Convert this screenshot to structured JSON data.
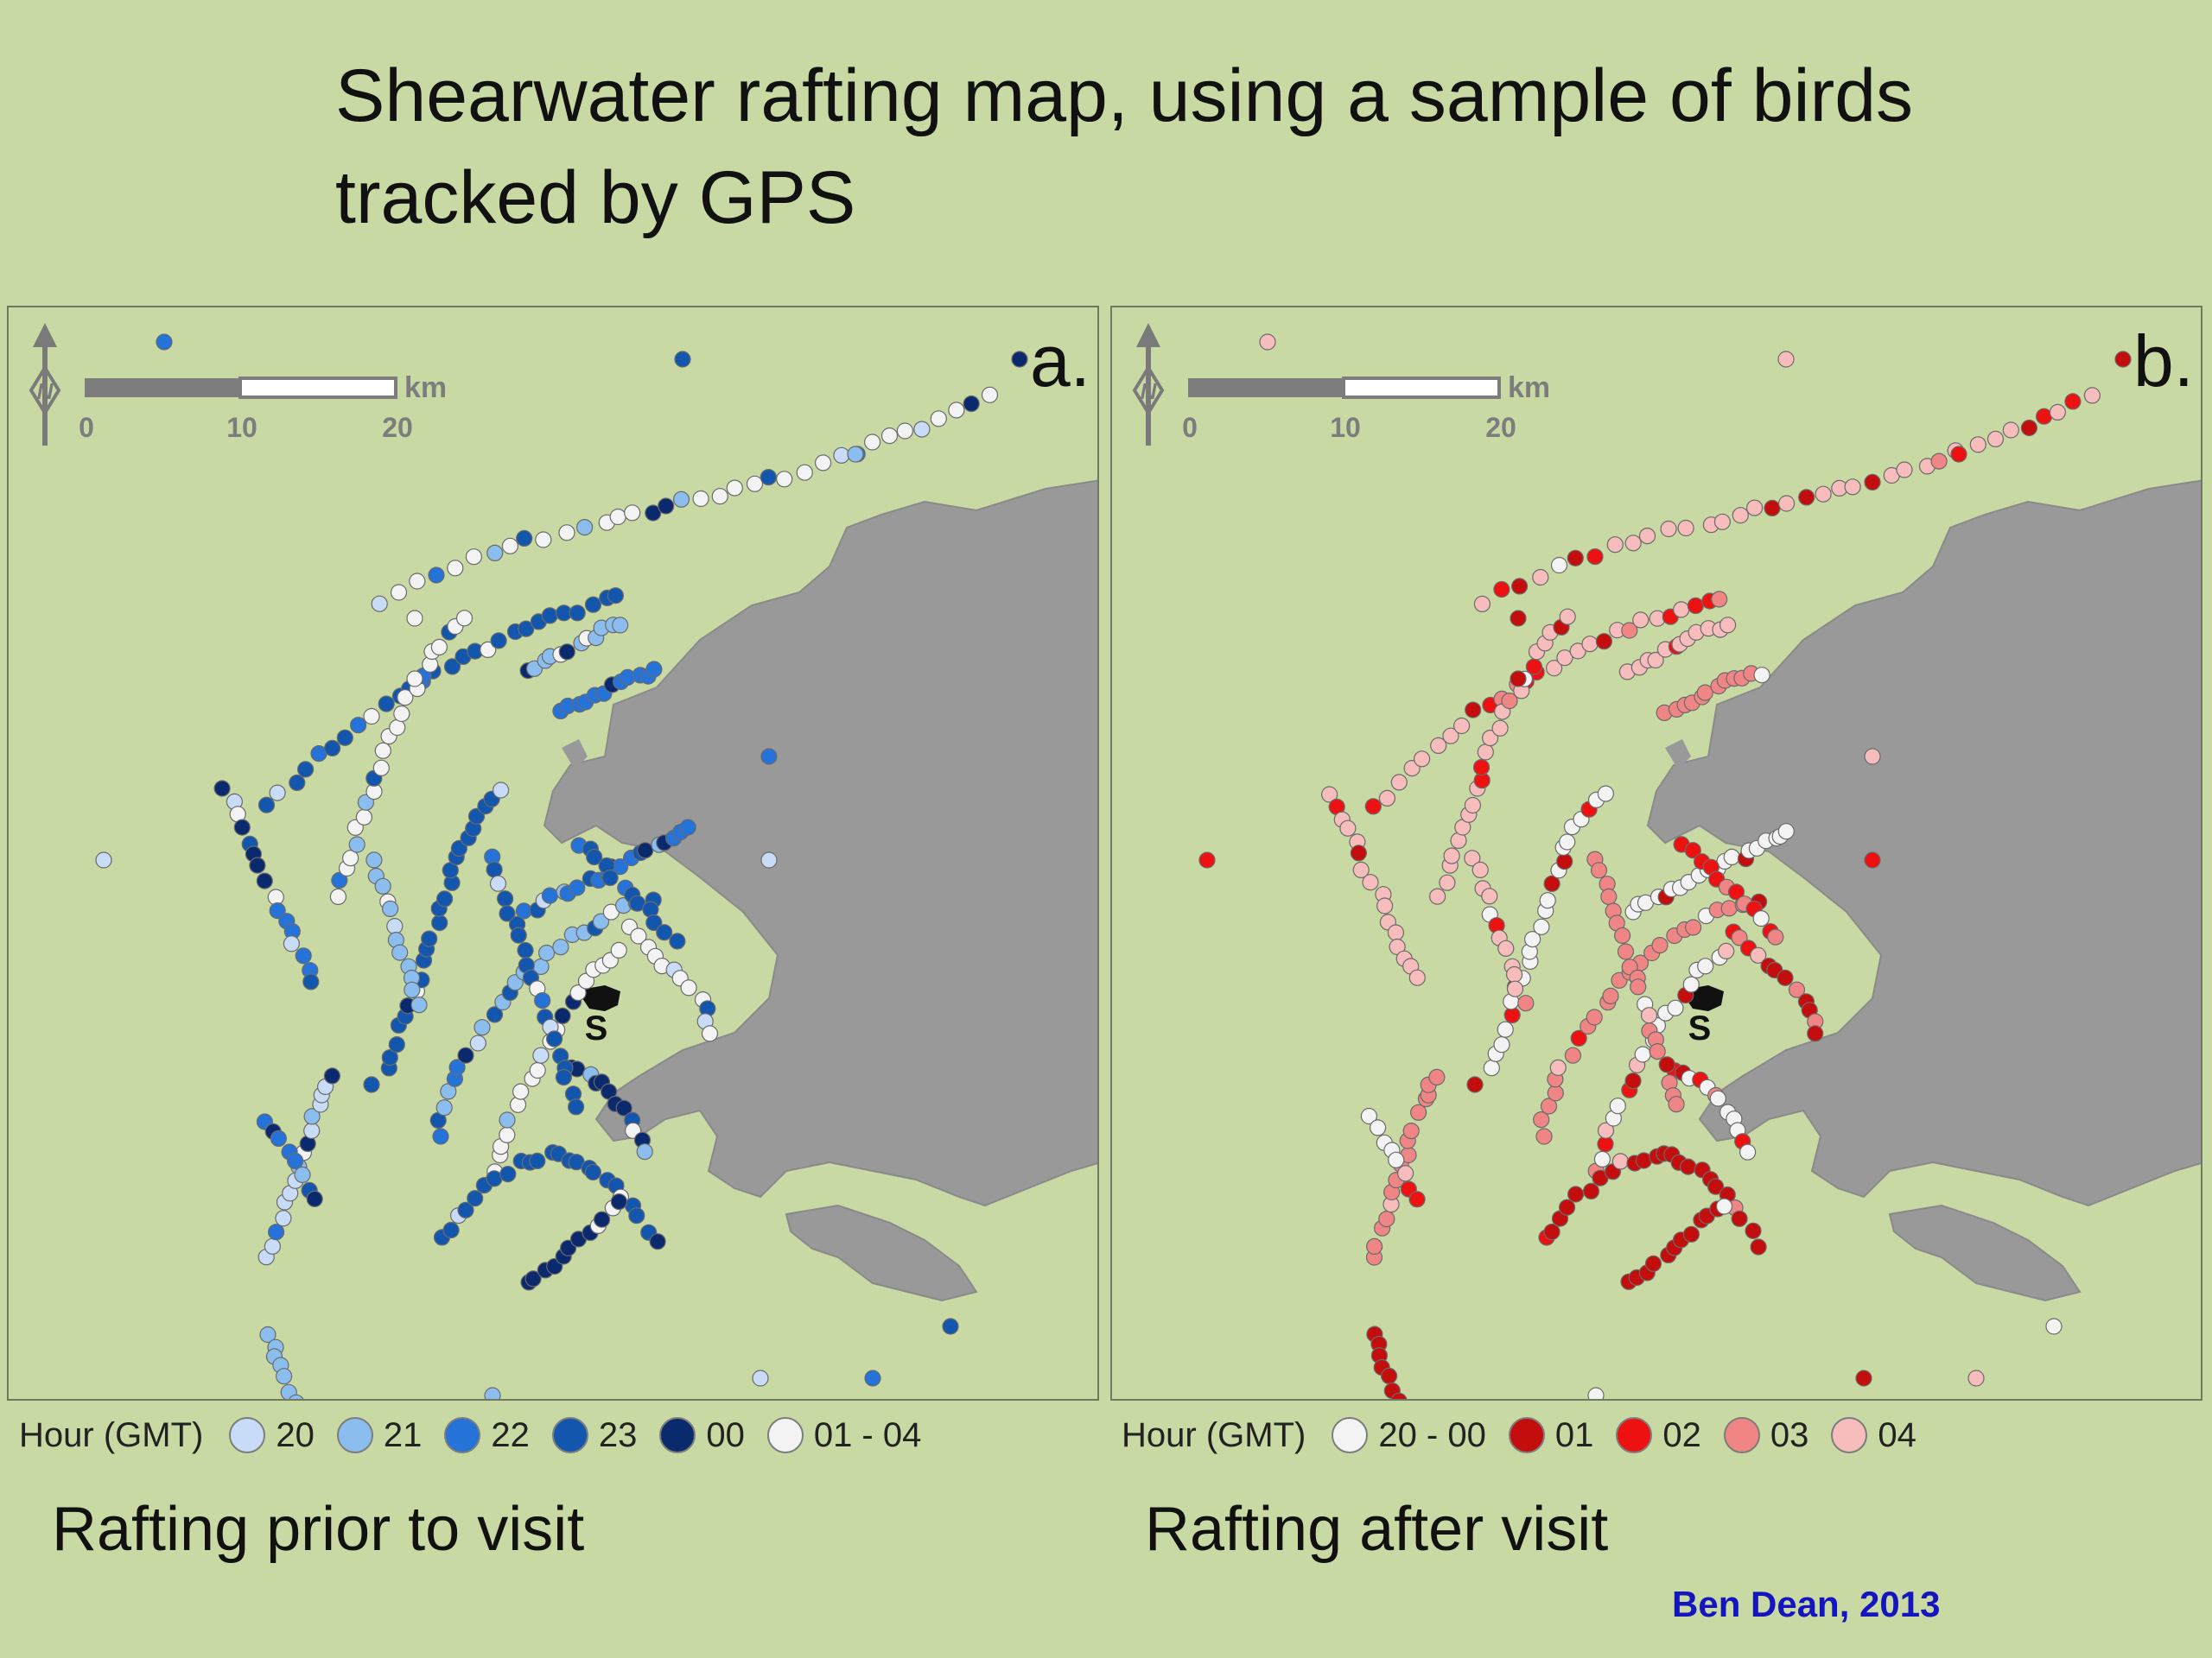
{
  "title": "Shearwater rafting map, using a sample of birds tracked by GPS",
  "scale_bar": {
    "unit": "km",
    "ticks": [
      "0",
      "10",
      "20"
    ]
  },
  "colony_label": "S",
  "land_color": "#999999",
  "sea_color": "#c8d9a3",
  "north_arrow_icon": "north-arrow-icon",
  "panels": [
    {
      "letter": "a.",
      "caption": "Rafting prior to visit",
      "legend_title": "Hour (GMT)",
      "legend": [
        {
          "label": "20",
          "color": "#c9dcf7"
        },
        {
          "label": "21",
          "color": "#8bbdee"
        },
        {
          "label": "22",
          "color": "#2573d9"
        },
        {
          "label": "23",
          "color": "#1257ad"
        },
        {
          "label": "00",
          "color": "#0b2a6e"
        },
        {
          "label": "01 - 04",
          "color": "#f3f3f3"
        }
      ]
    },
    {
      "letter": "b.",
      "caption": "Rafting after visit",
      "legend_title": "Hour (GMT)",
      "legend": [
        {
          "label": "20 - 00",
          "color": "#f3f3f3"
        },
        {
          "label": "01",
          "color": "#c40d0d"
        },
        {
          "label": "02",
          "color": "#ee1111"
        },
        {
          "label": "03",
          "color": "#f08585"
        },
        {
          "label": "04",
          "color": "#f7bcbc"
        }
      ]
    }
  ],
  "credit": "Ben Dean, 2013"
}
